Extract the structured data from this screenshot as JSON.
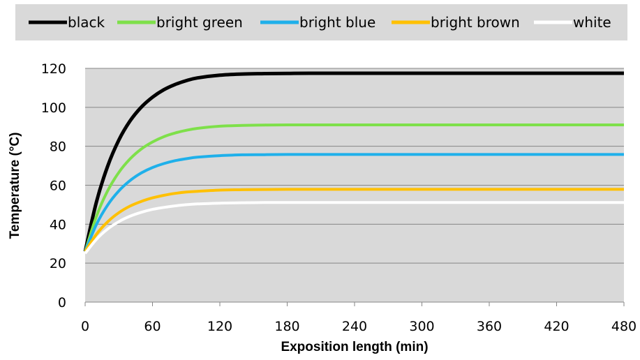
{
  "chart_data": {
    "type": "line",
    "xlabel": "Exposition length (min)",
    "ylabel": "Temperature (°C)",
    "xlim": [
      0,
      480
    ],
    "ylim": [
      0,
      120
    ],
    "x_ticks": [
      0,
      60,
      120,
      180,
      240,
      300,
      360,
      420,
      480
    ],
    "y_ticks": [
      0,
      20,
      40,
      60,
      80,
      100,
      120
    ],
    "grid": true,
    "legend_position": "top",
    "plot_background": "#d9d9d9",
    "x": [
      0,
      10,
      20,
      30,
      40,
      50,
      60,
      70,
      80,
      90,
      100,
      120,
      140,
      160,
      180,
      200,
      240,
      300,
      360,
      420,
      480
    ],
    "series": [
      {
        "name": "black",
        "color": "#000000",
        "values": [
          26,
          51.3,
          69.7,
          83.2,
          93.0,
          100.1,
          105.2,
          109.0,
          111.7,
          113.7,
          115.1,
          116.5,
          117.1,
          117.3,
          117.4,
          117.5,
          117.5,
          117.5,
          117.5,
          117.5,
          117.5
        ]
      },
      {
        "name": "bright green",
        "color": "#7ee04a",
        "values": [
          26,
          44.0,
          57.1,
          66.6,
          73.5,
          78.6,
          82.2,
          84.9,
          86.8,
          88.2,
          89.2,
          90.3,
          90.7,
          90.9,
          91.0,
          91.0,
          91.0,
          91.0,
          91.0,
          91.0,
          91.0
        ]
      },
      {
        "name": "bright blue",
        "color": "#1fb0ea",
        "values": [
          26,
          39.8,
          49.8,
          57.1,
          62.4,
          66.3,
          69.1,
          71.1,
          72.6,
          73.6,
          74.4,
          75.2,
          75.6,
          75.7,
          75.8,
          75.8,
          75.8,
          75.8,
          75.8,
          75.8,
          75.8
        ]
      },
      {
        "name": "bright brown",
        "color": "#ffc000",
        "values": [
          26,
          34.8,
          41.2,
          45.9,
          49.3,
          51.7,
          53.5,
          54.8,
          55.8,
          56.5,
          56.9,
          57.5,
          57.7,
          57.8,
          57.9,
          57.9,
          57.9,
          57.9,
          57.9,
          57.9,
          57.9
        ]
      },
      {
        "name": "white",
        "color": "#ffffff",
        "values": [
          25,
          32.2,
          37.5,
          41.3,
          44.1,
          46.1,
          47.6,
          48.6,
          49.4,
          50.0,
          50.4,
          50.8,
          51.0,
          51.1,
          51.1,
          51.1,
          51.1,
          51.1,
          51.1,
          51.1,
          51.1
        ]
      }
    ]
  }
}
